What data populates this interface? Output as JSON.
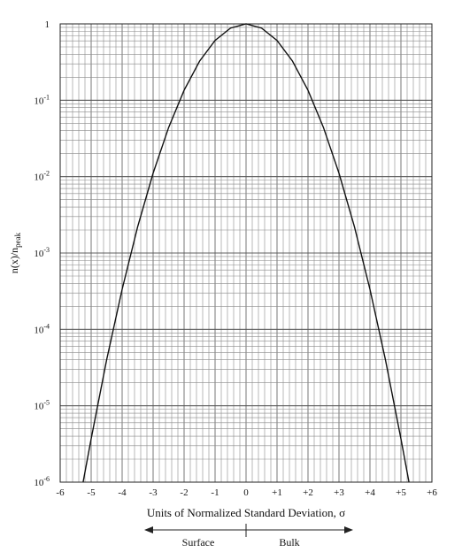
{
  "chart_data": {
    "type": "line",
    "title": "",
    "xlabel": "Units of Normalized Standard Deviation, σ",
    "ylabel_main": "n(x)/n",
    "ylabel_sub": "peak",
    "xlim": [
      -6,
      6
    ],
    "ylim": [
      1e-06,
      1
    ],
    "yscale": "log",
    "grid": true,
    "x_ticks": [
      -6,
      -5,
      -4,
      -3,
      -2,
      -1,
      0,
      1,
      2,
      3,
      4,
      5,
      6
    ],
    "x_tick_labels": [
      "-6",
      "-5",
      "-4",
      "-3",
      "-2",
      "-1",
      "0",
      "+1",
      "+2",
      "+3",
      "+4",
      "+5",
      "+6"
    ],
    "y_ticks": [
      {
        "value": 1,
        "base": "1",
        "exp": ""
      },
      {
        "value": 0.1,
        "base": "10",
        "exp": "-1"
      },
      {
        "value": 0.01,
        "base": "10",
        "exp": "-2"
      },
      {
        "value": 0.001,
        "base": "10",
        "exp": "-3"
      },
      {
        "value": 0.0001,
        "base": "10",
        "exp": "-4"
      },
      {
        "value": 1e-05,
        "base": "10",
        "exp": "-5"
      },
      {
        "value": 1e-06,
        "base": "10",
        "exp": "-6"
      }
    ],
    "series": [
      {
        "x": [
          -5.26,
          -5.0,
          -4.5,
          -4.0,
          -3.5,
          -3.0,
          -2.5,
          -2.0,
          -1.5,
          -1.0,
          -0.5,
          0.0,
          0.5,
          1.0,
          1.5,
          2.0,
          2.5,
          3.0,
          3.5,
          4.0,
          4.5,
          5.0,
          5.26
        ],
        "y": [
          1e-06,
          3.7e-06,
          4e-05,
          0.000335,
          0.0022,
          0.0111,
          0.0439,
          0.135,
          0.325,
          0.607,
          0.882,
          1.0,
          0.882,
          0.607,
          0.325,
          0.135,
          0.0439,
          0.0111,
          0.0022,
          0.000335,
          4e-05,
          3.7e-06,
          1e-06
        ]
      }
    ],
    "annotation": {
      "left_label": "Surface",
      "right_label": "Bulk"
    }
  }
}
